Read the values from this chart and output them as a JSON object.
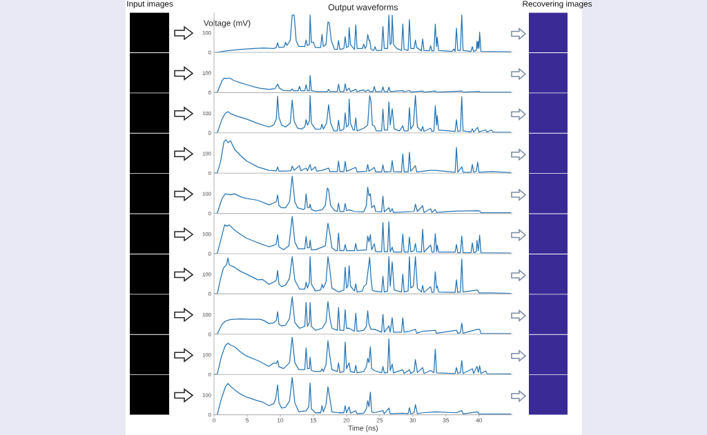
{
  "chart_data": [
    {
      "type": "line",
      "title": "Output waveforms",
      "ylabel": "Voltage (mV)",
      "annotations": [
        "Input images",
        "Recovering images"
      ],
      "xlim": [
        0,
        45
      ],
      "ylim": [
        0,
        200
      ],
      "yticks": [
        0,
        100
      ],
      "tick_labels": "y",
      "series": [
        {
          "color": "#2272b4",
          "x": [
            0,
            0.8,
            2,
            4,
            6,
            7.5,
            9,
            9.4,
            9.6,
            9.8,
            10.6,
            10.8,
            11.0,
            11.5,
            11.8,
            12.1,
            12.4,
            12.8,
            13.7,
            13.9,
            14.1,
            14.4,
            14.5,
            14.7,
            15.0,
            15.3,
            16.1,
            16.3,
            16.5,
            16.9,
            17.2,
            17.4,
            17.7,
            18.2,
            18.6,
            18.8,
            19.0,
            19.6,
            19.8,
            20.0,
            20.3,
            20.4,
            20.6,
            21.2,
            21.4,
            21.6,
            22.4,
            22.6,
            22.8,
            23.0,
            23.2,
            23.4,
            23.5,
            23.7,
            24.1,
            24.3,
            24.5,
            25.3,
            25.5,
            25.7,
            26.2,
            26.4,
            26.6,
            26.8,
            26.9,
            27.1,
            27.6,
            28.3,
            28.5,
            28.7,
            29.3,
            29.5,
            29.7,
            30.2,
            30.4,
            30.6,
            31.3,
            31.5,
            31.7,
            32.5,
            32.7,
            32.9,
            33.2,
            33.4,
            33.6,
            33.7,
            33.9,
            35.9,
            36.2,
            36.4,
            36.6,
            36.8,
            37.2,
            37.4,
            37.6,
            38.8,
            39.0,
            39.2,
            39.6,
            39.7,
            39.8,
            39.9,
            40.0,
            40.1,
            40.3,
            42,
            44.8
          ],
          "values": [
            0,
            2,
            8,
            15,
            20,
            22,
            20,
            25,
            49,
            25,
            28,
            52,
            35,
            60,
            190,
            190,
            60,
            30,
            30,
            63,
            35,
            40,
            190,
            50,
            52,
            25,
            25,
            92,
            30,
            40,
            155,
            150,
            60,
            15,
            15,
            60,
            15,
            20,
            80,
            25,
            30,
            126,
            40,
            15,
            140,
            20,
            20,
            42,
            20,
            30,
            92,
            60,
            63,
            15,
            10,
            29,
            10,
            10,
            132,
            20,
            20,
            190,
            40,
            50,
            190,
            40,
            20,
            10,
            144,
            15,
            10,
            167,
            20,
            20,
            63,
            25,
            8,
            69,
            10,
            8,
            34,
            8,
            8,
            144,
            30,
            77,
            10,
            5,
            17,
            5,
            123,
            10,
            10,
            190,
            10,
            5,
            29,
            5,
            10,
            57,
            20,
            57,
            20,
            103,
            5,
            4,
            3
          ]
        }
      ]
    },
    {
      "type": "line",
      "xlim": [
        0,
        45
      ],
      "ylim": [
        0,
        200
      ],
      "yticks": [
        0,
        100
      ],
      "tick_labels": "y",
      "series": [
        {
          "color": "#2272b4",
          "x": [
            0,
            0.5,
            1.2,
            1.5,
            2.0,
            2.3,
            3,
            4,
            5,
            6,
            7,
            8.3,
            9.2,
            9.6,
            9.9,
            10.5,
            11.6,
            11.8,
            12.0,
            12.7,
            12.9,
            13.1,
            13.7,
            13.9,
            14.1,
            14.4,
            14.5,
            14.7,
            15.5,
            17.1,
            17.3,
            17.5,
            18.6,
            18.8,
            19.0,
            19.6,
            19.8,
            20.0,
            20.4,
            20.6,
            21.4,
            21.6,
            22.6,
            22.8,
            23.3,
            23.5,
            24.0,
            24.2,
            24.4,
            25.3,
            25.5,
            25.7,
            26.2,
            26.4,
            26.6,
            28.5,
            28.7,
            29.5,
            29.7,
            31.5,
            31.7,
            33.4,
            33.6,
            37.4,
            37.6,
            40,
            40.2,
            44.8
          ],
          "values": [
            0,
            2,
            60,
            74,
            72,
            75,
            62,
            50,
            40,
            30,
            22,
            17,
            20,
            43,
            22,
            11,
            10,
            19,
            10,
            10,
            32,
            10,
            10,
            40,
            10,
            10,
            88,
            10,
            5,
            5,
            17,
            5,
            5,
            43,
            5,
            5,
            45,
            10,
            23,
            5,
            17,
            5,
            14,
            5,
            14,
            5,
            5,
            32,
            5,
            5,
            30,
            5,
            5,
            28,
            5,
            11,
            4,
            11,
            4,
            8,
            3,
            8,
            3,
            8,
            3,
            6,
            3,
            3
          ]
        }
      ]
    },
    {
      "type": "line",
      "xlim": [
        0,
        45
      ],
      "ylim": [
        0,
        200
      ],
      "yticks": [
        0,
        100
      ],
      "tick_labels": "y",
      "series": [
        {
          "color": "#2272b4",
          "x": [
            0,
            0.5,
            1.2,
            1.7,
            2.1,
            2.5,
            3.5,
            4.9,
            6.6,
            8.3,
            9.0,
            9.4,
            9.6,
            9.8,
            10.2,
            10.8,
            11.5,
            11.8,
            12.1,
            12.6,
            13.2,
            13.7,
            13.9,
            14.1,
            14.4,
            14.5,
            14.7,
            15.3,
            16.1,
            16.3,
            16.5,
            17.0,
            17.3,
            17.6,
            18.1,
            18.6,
            18.8,
            19.0,
            19.6,
            19.8,
            20.0,
            20.3,
            20.4,
            20.6,
            21.0,
            21.2,
            21.4,
            21.6,
            22.6,
            23.2,
            23.5,
            23.7,
            23.9,
            24.2,
            24.5,
            25.3,
            25.5,
            25.7,
            26.2,
            26.4,
            26.6,
            26.9,
            27.2,
            28.0,
            28.5,
            28.7,
            29.3,
            29.5,
            29.7,
            30.1,
            30.4,
            30.7,
            31.3,
            31.5,
            31.7,
            32.7,
            32.9,
            33.2,
            33.4,
            33.6,
            33.7,
            33.9,
            36.4,
            36.6,
            36.8,
            37.2,
            37.4,
            37.6,
            38.8,
            39.0,
            39.2,
            39.8,
            40.0,
            41,
            41.2,
            41.9,
            42.1,
            44.8
          ],
          "values": [
            0,
            2,
            70,
            100,
            108,
            98,
            85,
            71,
            48,
            30,
            40,
            70,
            187,
            80,
            40,
            30,
            50,
            167,
            60,
            24,
            20,
            30,
            67,
            40,
            60,
            190,
            50,
            19,
            20,
            44,
            20,
            50,
            144,
            50,
            10,
            10,
            65,
            10,
            20,
            102,
            30,
            40,
            172,
            50,
            15,
            15,
            77,
            10,
            24,
            40,
            190,
            160,
            40,
            36,
            10,
            10,
            121,
            15,
            15,
            158,
            40,
            123,
            20,
            10,
            36,
            10,
            10,
            129,
            20,
            40,
            190,
            30,
            10,
            33,
            8,
            24,
            8,
            10,
            138,
            40,
            88,
            15,
            8,
            67,
            8,
            10,
            184,
            10,
            5,
            21,
            5,
            28,
            5,
            15,
            4,
            15,
            4,
            3
          ]
        }
      ]
    },
    {
      "type": "line",
      "xlim": [
        0,
        45
      ],
      "ylim": [
        0,
        200
      ],
      "yticks": [
        0,
        100
      ],
      "tick_labels": "y",
      "series": [
        {
          "color": "#2272b4",
          "x": [
            0,
            0.5,
            1.0,
            1.5,
            1.8,
            2.1,
            2.5,
            3.1,
            4.0,
            4.9,
            6.6,
            8.3,
            9.4,
            9.6,
            9.8,
            11.6,
            11.8,
            12.1,
            12.9,
            13.1,
            13.9,
            14.1,
            14.5,
            14.7,
            15.3,
            15.5,
            16.3,
            17.3,
            17.5,
            18.6,
            18.8,
            19.0,
            19.6,
            19.8,
            20.0,
            21.4,
            21.6,
            23.0,
            23.2,
            23.4,
            24.2,
            24.4,
            25.3,
            25.5,
            25.7,
            26.7,
            26.9,
            27.1,
            28.3,
            28.5,
            28.7,
            29.3,
            29.5,
            29.7,
            30.4,
            30.6,
            32.7,
            33.4,
            36.4,
            36.6,
            36.8,
            37.4,
            37.6,
            38.8,
            39.0,
            39.2,
            39.6,
            39.8,
            40.0,
            41.9,
            44.8
          ],
          "values": [
            0,
            2,
            60,
            160,
            170,
            155,
            165,
            121,
            90,
            62,
            32,
            14,
            12,
            32,
            10,
            12,
            36,
            15,
            38,
            12,
            26,
            12,
            44,
            15,
            32,
            10,
            14,
            26,
            8,
            8,
            62,
            8,
            8,
            60,
            10,
            29,
            6,
            10,
            44,
            10,
            29,
            6,
            6,
            42,
            6,
            8,
            64,
            8,
            6,
            98,
            6,
            6,
            106,
            10,
            38,
            6,
            14,
            14,
            5,
            131,
            5,
            32,
            5,
            5,
            44,
            5,
            10,
            56,
            5,
            8,
            3
          ]
        }
      ]
    },
    {
      "type": "line",
      "xlim": [
        0,
        45
      ],
      "ylim": [
        0,
        200
      ],
      "yticks": [
        0,
        100
      ],
      "tick_labels": "y",
      "series": [
        {
          "color": "#2272b4",
          "x": [
            0,
            0.5,
            1.2,
            1.7,
            2.5,
            3.1,
            4.0,
            4.9,
            6.6,
            8.3,
            9.0,
            9.4,
            9.6,
            9.8,
            10.2,
            10.8,
            11.4,
            11.8,
            12.2,
            12.6,
            13.5,
            13.7,
            13.9,
            14.1,
            14.4,
            14.5,
            14.7,
            15.3,
            16.3,
            16.8,
            17.1,
            17.3,
            17.6,
            18.2,
            18.6,
            18.8,
            19.0,
            19.6,
            19.8,
            20.0,
            20.4,
            21.2,
            22.6,
            23.0,
            23.2,
            23.4,
            23.6,
            23.8,
            24.2,
            24.4,
            25.3,
            25.5,
            25.7,
            26.4,
            26.6,
            26.9,
            27.1,
            30.2,
            30.4,
            30.7,
            31.5,
            31.7,
            32.7,
            32.9,
            33.4,
            33.6,
            36.6,
            37.4,
            39.8,
            40.1,
            40.3,
            44.8
          ],
          "values": [
            0,
            2,
            75,
            100,
            95,
            100,
            85,
            76,
            67,
            44,
            53,
            60,
            94,
            40,
            29,
            29,
            60,
            190,
            60,
            29,
            20,
            25,
            100,
            30,
            30,
            47,
            20,
            12,
            18,
            40,
            129,
            120,
            40,
            15,
            10,
            53,
            10,
            10,
            51,
            15,
            18,
            10,
            8,
            40,
            133,
            90,
            100,
            30,
            41,
            10,
            8,
            88,
            8,
            29,
            8,
            24,
            5,
            10,
            47,
            10,
            39,
            5,
            24,
            5,
            20,
            5,
            12,
            12,
            14,
            12,
            4,
            3
          ]
        }
      ]
    },
    {
      "type": "line",
      "xlim": [
        0,
        45
      ],
      "ylim": [
        0,
        200
      ],
      "yticks": [
        0,
        100
      ],
      "tick_labels": "y",
      "series": [
        {
          "color": "#2272b4",
          "x": [
            0,
            0.5,
            1.1,
            1.6,
            2.0,
            2.3,
            3.1,
            4.0,
            4.9,
            6.6,
            8.3,
            9.0,
            9.4,
            9.6,
            9.8,
            10.5,
            11.3,
            11.8,
            12.2,
            12.7,
            13.7,
            13.9,
            14.1,
            14.4,
            14.5,
            14.7,
            15.3,
            16.8,
            17.2,
            17.5,
            17.8,
            18.4,
            18.6,
            18.8,
            19.0,
            19.6,
            19.8,
            20.0,
            21.2,
            21.4,
            21.6,
            23.0,
            23.2,
            23.4,
            23.6,
            23.8,
            24.2,
            24.4,
            25.3,
            25.5,
            25.7,
            26.2,
            26.4,
            26.6,
            26.9,
            27.1,
            28.3,
            28.5,
            28.7,
            29.3,
            29.5,
            29.7,
            30.2,
            30.4,
            30.6,
            31.3,
            31.5,
            31.7,
            32.7,
            32.9,
            33.2,
            33.4,
            33.6,
            33.7,
            33.9,
            36.4,
            36.6,
            36.8,
            37.2,
            37.4,
            37.6,
            38.8,
            39.0,
            39.2,
            39.6,
            39.7,
            39.9,
            40.1,
            40.3,
            44.8
          ],
          "values": [
            0,
            2,
            80,
            147,
            140,
            147,
            120,
            98,
            79,
            56,
            35,
            42,
            50,
            97,
            35,
            20,
            40,
            190,
            60,
            25,
            25,
            88,
            30,
            30,
            70,
            20,
            20,
            40,
            155,
            100,
            30,
            15,
            15,
            105,
            15,
            15,
            47,
            15,
            15,
            52,
            15,
            20,
            90,
            60,
            97,
            20,
            50,
            10,
            10,
            158,
            10,
            10,
            163,
            10,
            33,
            8,
            8,
            100,
            8,
            8,
            85,
            10,
            15,
            52,
            10,
            8,
            124,
            8,
            44,
            8,
            8,
            102,
            10,
            43,
            8,
            8,
            47,
            5,
            5,
            90,
            5,
            5,
            56,
            5,
            10,
            67,
            15,
            94,
            5,
            3
          ]
        }
      ]
    },
    {
      "type": "line",
      "xlim": [
        0,
        45
      ],
      "ylim": [
        0,
        200
      ],
      "yticks": [
        0,
        100
      ],
      "tick_labels": "y",
      "series": [
        {
          "color": "#2272b4",
          "x": [
            0,
            0.5,
            1.0,
            1.4,
            1.9,
            2.1,
            2.3,
            3.1,
            4.0,
            4.9,
            6.6,
            7.3,
            8.3,
            9.0,
            9.4,
            9.6,
            9.8,
            10.2,
            10.8,
            11.4,
            11.8,
            12.2,
            12.9,
            13.7,
            13.9,
            14.1,
            14.4,
            14.5,
            14.7,
            15.3,
            16.1,
            16.3,
            16.5,
            16.9,
            17.2,
            17.5,
            17.8,
            18.8,
            19.6,
            19.8,
            20.0,
            20.2,
            20.4,
            20.6,
            21.2,
            21.4,
            21.6,
            22.4,
            22.6,
            23.0,
            23.5,
            23.7,
            23.9,
            24.2,
            25.3,
            25.5,
            25.7,
            26.2,
            26.4,
            26.6,
            26.9,
            27.2,
            28.3,
            28.5,
            28.7,
            29.3,
            29.5,
            29.7,
            30.1,
            30.4,
            30.7,
            31.3,
            31.5,
            31.7,
            32.7,
            32.9,
            33.2,
            33.4,
            33.6,
            33.7,
            33.9,
            36.4,
            36.6,
            36.8,
            37.2,
            37.4,
            37.6,
            39.8,
            40.0,
            41.9,
            44.8
          ],
          "values": [
            0,
            2,
            80,
            130,
            150,
            183,
            148,
            136,
            115,
            101,
            72,
            74,
            49,
            60,
            70,
            119,
            50,
            37,
            45,
            80,
            190,
            70,
            25,
            25,
            60,
            30,
            60,
            190,
            50,
            15,
            20,
            49,
            30,
            60,
            190,
            120,
            30,
            10,
            20,
            136,
            30,
            40,
            144,
            40,
            15,
            52,
            10,
            15,
            37,
            50,
            186,
            80,
            20,
            15,
            10,
            90,
            10,
            15,
            190,
            40,
            163,
            20,
            10,
            101,
            10,
            15,
            190,
            30,
            40,
            190,
            30,
            10,
            43,
            8,
            37,
            8,
            10,
            113,
            30,
            40,
            10,
            8,
            72,
            8,
            10,
            177,
            10,
            20,
            5,
            5,
            3
          ]
        }
      ]
    },
    {
      "type": "line",
      "xlim": [
        0,
        45
      ],
      "ylim": [
        0,
        200
      ],
      "yticks": [
        0,
        100
      ],
      "tick_labels": "y",
      "series": [
        {
          "color": "#2272b4",
          "x": [
            0,
            0.5,
            1.2,
            1.7,
            2.5,
            4,
            5.5,
            7.0,
            7.5,
            8.3,
            9.0,
            9.4,
            9.6,
            9.8,
            10.2,
            10.8,
            11.4,
            11.8,
            12.2,
            12.9,
            13.7,
            13.9,
            14.1,
            14.4,
            14.5,
            14.7,
            15.3,
            16.3,
            16.9,
            17.2,
            17.5,
            17.8,
            18.6,
            18.8,
            19.0,
            19.6,
            19.8,
            20.0,
            20.4,
            21.2,
            21.4,
            21.6,
            22.6,
            23.0,
            23.2,
            23.4,
            23.7,
            24.2,
            25.3,
            25.5,
            25.7,
            26.4,
            26.6,
            26.9,
            27.1,
            28.3,
            28.5,
            28.7,
            29.5,
            30.4,
            30.6,
            31.5,
            33.4,
            33.6,
            36.6,
            36.8,
            37.2,
            37.4,
            37.6,
            39.8,
            40.1,
            40.3,
            44.8
          ],
          "values": [
            0,
            2,
            50,
            66,
            75,
            78,
            76,
            76,
            70,
            54,
            58,
            70,
            115,
            50,
            42,
            45,
            80,
            190,
            60,
            30,
            40,
            162,
            40,
            60,
            162,
            40,
            20,
            30,
            60,
            166,
            80,
            30,
            20,
            136,
            20,
            20,
            125,
            30,
            30,
            15,
            107,
            15,
            20,
            40,
            119,
            50,
            25,
            25,
            10,
            101,
            10,
            42,
            10,
            84,
            10,
            10,
            84,
            10,
            15,
            25,
            5,
            15,
            20,
            5,
            20,
            5,
            8,
            56,
            5,
            25,
            25,
            4,
            3
          ]
        }
      ]
    },
    {
      "type": "line",
      "xlim": [
        0,
        45
      ],
      "ylim": [
        0,
        200
      ],
      "yticks": [
        0,
        100
      ],
      "tick_labels": "y",
      "series": [
        {
          "color": "#2272b4",
          "x": [
            0,
            0.5,
            1.1,
            1.7,
            2.1,
            2.5,
            3.1,
            4.0,
            4.9,
            6.6,
            8.3,
            9.0,
            9.4,
            9.6,
            9.8,
            10.5,
            11.4,
            11.8,
            12.2,
            12.8,
            13.7,
            13.9,
            14.1,
            14.4,
            14.5,
            14.7,
            15.3,
            16.1,
            16.3,
            16.5,
            16.9,
            17.2,
            17.5,
            17.8,
            18.6,
            18.8,
            19.0,
            19.6,
            19.8,
            20.0,
            20.4,
            20.6,
            21.2,
            21.4,
            21.6,
            22.6,
            23.0,
            23.2,
            23.4,
            23.6,
            23.8,
            24.2,
            25.3,
            25.5,
            25.7,
            26.2,
            26.4,
            26.6,
            26.9,
            27.1,
            28.5,
            28.7,
            29.5,
            29.7,
            30.2,
            30.4,
            30.7,
            31.5,
            31.7,
            32.7,
            33.2,
            33.4,
            33.6,
            36.4,
            36.6,
            36.8,
            37.2,
            37.4,
            37.6,
            39.0,
            39.2,
            39.7,
            39.9,
            40.1,
            40.3,
            41.0,
            41.2,
            44.8
          ],
          "values": [
            0,
            2,
            90,
            147,
            159,
            150,
            141,
            115,
            94,
            71,
            41,
            59,
            55,
            71,
            40,
            30,
            60,
            190,
            60,
            25,
            25,
            135,
            30,
            30,
            88,
            20,
            15,
            15,
            29,
            15,
            50,
            171,
            90,
            25,
            15,
            59,
            10,
            15,
            165,
            30,
            59,
            15,
            10,
            47,
            8,
            15,
            40,
            82,
            60,
            141,
            30,
            20,
            8,
            41,
            8,
            10,
            182,
            20,
            53,
            8,
            24,
            5,
            24,
            5,
            15,
            76,
            10,
            35,
            5,
            20,
            10,
            129,
            8,
            5,
            35,
            5,
            10,
            71,
            5,
            29,
            5,
            41,
            10,
            44,
            5,
            18,
            4,
            3
          ]
        }
      ]
    },
    {
      "type": "line",
      "xlabel": "Time (ns)",
      "xlim": [
        0,
        45
      ],
      "ylim": [
        0,
        200
      ],
      "xticks": [
        0,
        5,
        10,
        15,
        20,
        25,
        30,
        35,
        40
      ],
      "yticks": [
        0,
        100
      ],
      "series": [
        {
          "color": "#2272b4",
          "x": [
            0,
            0.5,
            1.1,
            1.7,
            2.1,
            2.5,
            3.1,
            4.0,
            4.9,
            6.6,
            7.3,
            8.3,
            9.0,
            9.3,
            9.6,
            9.8,
            10.2,
            10.8,
            11.4,
            11.8,
            12.2,
            12.8,
            13.9,
            14.3,
            14.5,
            14.7,
            15.3,
            16.1,
            16.3,
            16.5,
            16.9,
            17.2,
            17.5,
            17.8,
            18.8,
            19.6,
            19.8,
            20.0,
            20.4,
            20.6,
            21.4,
            21.6,
            22.6,
            23.0,
            23.2,
            23.4,
            23.6,
            23.8,
            24.2,
            25.5,
            25.7,
            26.4,
            26.6,
            28.5,
            29.3,
            29.5,
            29.7,
            30.2,
            30.4,
            30.7,
            31.5,
            33.4,
            36.6,
            37.4,
            37.6,
            39.8,
            40.0,
            44.8
          ],
          "values": [
            0,
            2,
            80,
            140,
            159,
            145,
            127,
            105,
            90,
            71,
            65,
            46,
            56,
            80,
            152,
            60,
            34,
            38,
            70,
            190,
            60,
            15,
            20,
            40,
            161,
            30,
            10,
            10,
            46,
            15,
            50,
            142,
            80,
            15,
            10,
            10,
            46,
            10,
            40,
            8,
            20,
            5,
            8,
            30,
            71,
            40,
            115,
            15,
            10,
            21,
            5,
            34,
            5,
            8,
            5,
            36,
            5,
            10,
            52,
            5,
            10,
            15,
            10,
            21,
            4,
            15,
            4,
            3
          ]
        }
      ]
    }
  ]
}
